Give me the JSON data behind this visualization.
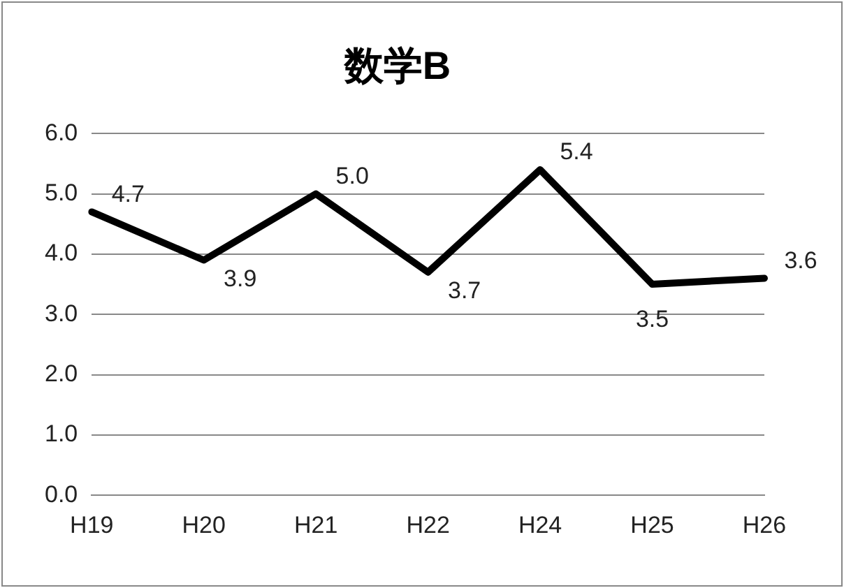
{
  "chart_data": {
    "type": "line",
    "title": "数学B",
    "categories": [
      "H19",
      "H20",
      "H21",
      "H22",
      "H24",
      "H25",
      "H26"
    ],
    "series": [
      {
        "color": "#000000",
        "values": [
          4.7,
          3.9,
          5.0,
          3.7,
          5.4,
          3.5,
          3.6
        ]
      }
    ],
    "value_labels": [
      "4.7",
      "3.9",
      "5.0",
      "3.7",
      "5.4",
      "3.5",
      "3.6"
    ],
    "ylim": [
      0,
      6
    ],
    "yticks": [
      {
        "value": 0,
        "label": "0.0"
      },
      {
        "value": 1,
        "label": "1.0"
      },
      {
        "value": 2,
        "label": "2.0"
      },
      {
        "value": 3,
        "label": "3.0"
      },
      {
        "value": 4,
        "label": "4.0"
      },
      {
        "value": 5,
        "label": "5.0"
      },
      {
        "value": 6,
        "label": "6.0"
      }
    ],
    "grid": "y",
    "legend": false,
    "marker": "none",
    "line_style": "solid"
  }
}
